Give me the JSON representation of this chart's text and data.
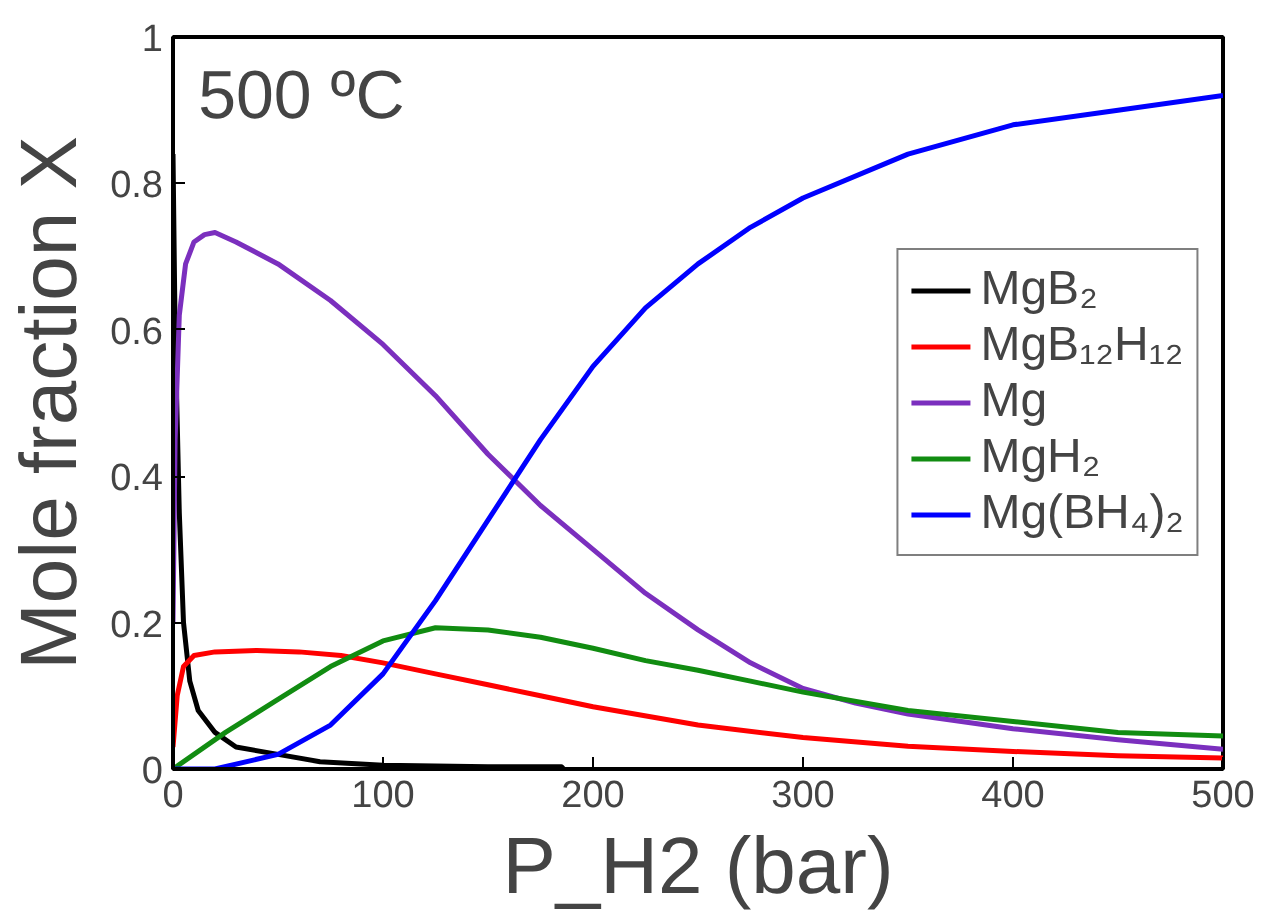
{
  "chart_data": {
    "type": "line",
    "xlabel": "P_H2 (bar)",
    "ylabel": "Mole fraction X",
    "annotations": [
      "500 ºC"
    ],
    "xlim": [
      0,
      500
    ],
    "xticks": [
      0,
      100,
      200,
      300,
      400,
      500
    ],
    "ylim": [
      0,
      1
    ],
    "yticks": [
      0,
      0.2,
      0.4,
      0.6,
      0.8,
      1
    ],
    "grid": false,
    "legend": "right",
    "marker": "none",
    "line_style": "solid",
    "series": [
      {
        "name": "MgB₂",
        "color": "#000000",
        "x": [
          0,
          1,
          3,
          5,
          8,
          12,
          20,
          30,
          50,
          70,
          100,
          150,
          185,
          186
        ],
        "values": [
          0.84,
          0.6,
          0.35,
          0.2,
          0.12,
          0.08,
          0.05,
          0.03,
          0.02,
          0.01,
          0.005,
          0.003,
          0.003,
          0
        ]
      },
      {
        "name": "MgB₁₂H₁₂",
        "color": "#ff0000",
        "x": [
          0,
          2,
          5,
          10,
          20,
          40,
          60,
          80,
          100,
          125,
          150,
          175,
          200,
          250,
          300,
          350,
          400,
          450,
          500
        ],
        "values": [
          0.03,
          0.1,
          0.14,
          0.155,
          0.16,
          0.162,
          0.16,
          0.155,
          0.145,
          0.13,
          0.115,
          0.1,
          0.085,
          0.06,
          0.043,
          0.031,
          0.024,
          0.018,
          0.015
        ]
      },
      {
        "name": "Mg",
        "color": "#7b2fbe",
        "x": [
          0,
          1,
          3,
          6,
          10,
          15,
          20,
          30,
          50,
          75,
          100,
          125,
          150,
          175,
          200,
          225,
          250,
          275,
          300,
          325,
          350,
          400,
          450,
          500
        ],
        "values": [
          0.2,
          0.45,
          0.62,
          0.69,
          0.72,
          0.73,
          0.733,
          0.72,
          0.69,
          0.64,
          0.58,
          0.51,
          0.43,
          0.36,
          0.3,
          0.24,
          0.19,
          0.145,
          0.11,
          0.09,
          0.075,
          0.055,
          0.04,
          0.027
        ]
      },
      {
        "name": "MgH₂",
        "color": "#118c11",
        "x": [
          0,
          25,
          50,
          75,
          100,
          125,
          150,
          175,
          200,
          225,
          250,
          275,
          300,
          350,
          400,
          450,
          500
        ],
        "values": [
          0,
          0.05,
          0.095,
          0.14,
          0.175,
          0.193,
          0.19,
          0.18,
          0.165,
          0.148,
          0.135,
          0.12,
          0.105,
          0.08,
          0.065,
          0.05,
          0.045
        ]
      },
      {
        "name": "Mg(BH₄)₂",
        "color": "#0000ff",
        "x": [
          0,
          20,
          50,
          75,
          100,
          125,
          150,
          175,
          200,
          225,
          250,
          275,
          300,
          350,
          400,
          450,
          500
        ],
        "values": [
          0,
          0,
          0.02,
          0.06,
          0.13,
          0.23,
          0.34,
          0.45,
          0.55,
          0.63,
          0.69,
          0.74,
          0.78,
          0.84,
          0.88,
          0.9,
          0.92
        ]
      }
    ]
  }
}
